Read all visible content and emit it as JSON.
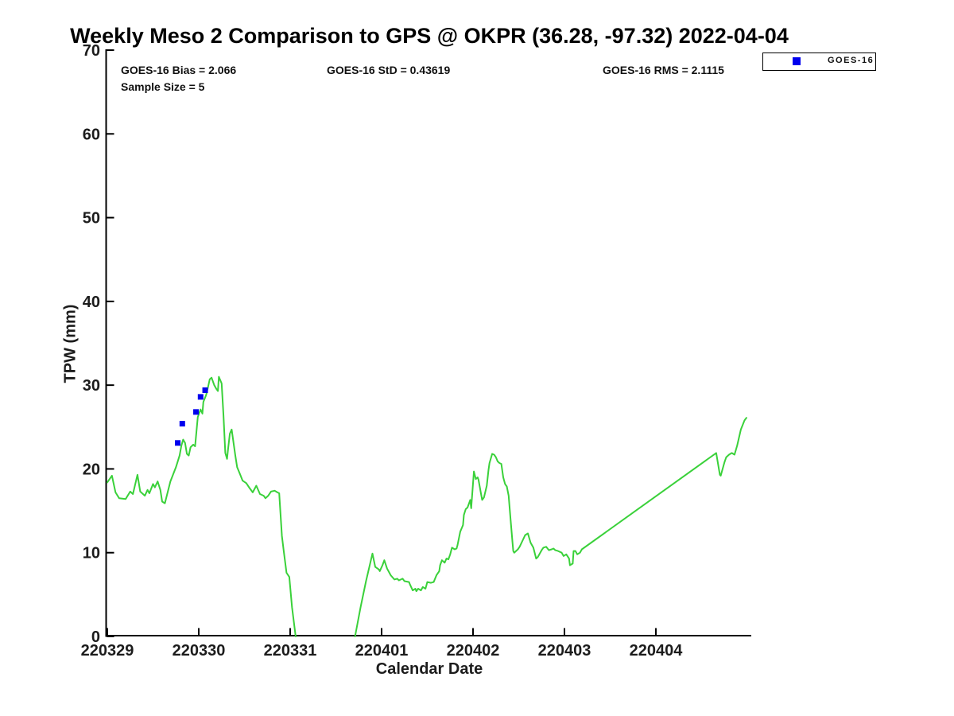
{
  "title": "Weekly Meso 2 Comparison to GPS @ OKPR (36.28, -97.32) 2022-04-04",
  "stats": {
    "bias": "GOES-16 Bias = 2.066",
    "std": "GOES-16 StD = 0.43619",
    "rms": "GOES-16 RMS = 2.1115",
    "sample": "Sample Size = 5"
  },
  "legend": {
    "label": "GOES-16",
    "marker_color": "#0000ee"
  },
  "axes": {
    "xlabel": "Calendar Date",
    "ylabel": "TPW (mm)"
  },
  "chart_data": {
    "type": "line",
    "title": "Weekly Meso 2 Comparison to GPS @ OKPR (36.28, -97.32) 2022-04-04",
    "xlabel": "Calendar Date",
    "ylabel": "TPW (mm)",
    "x_unit": "days since start tick 220329",
    "xlim": [
      0,
      7.04
    ],
    "ylim": [
      0,
      70
    ],
    "grid": false,
    "legend_position": "top-right-outside",
    "x_ticks": [
      {
        "d": 0,
        "label": "220329"
      },
      {
        "d": 1,
        "label": "220330"
      },
      {
        "d": 2,
        "label": "220331"
      },
      {
        "d": 3,
        "label": "220401"
      },
      {
        "d": 4,
        "label": "220402"
      },
      {
        "d": 5,
        "label": "220403"
      },
      {
        "d": 6,
        "label": "220404"
      }
    ],
    "y_ticks": [
      0,
      10,
      20,
      30,
      40,
      50,
      60,
      70
    ],
    "series": [
      {
        "name": "GPS",
        "type": "line",
        "color": "#3ad13a",
        "width": 2,
        "segments": [
          [
            [
              0.0,
              18.4
            ],
            [
              0.05,
              19.2
            ],
            [
              0.09,
              17.2
            ],
            [
              0.13,
              16.5
            ],
            [
              0.2,
              16.4
            ],
            [
              0.25,
              17.3
            ],
            [
              0.28,
              17.0
            ],
            [
              0.33,
              19.3
            ],
            [
              0.36,
              17.3
            ],
            [
              0.41,
              16.8
            ],
            [
              0.44,
              17.5
            ],
            [
              0.46,
              17.1
            ],
            [
              0.5,
              18.2
            ],
            [
              0.52,
              17.8
            ],
            [
              0.55,
              18.5
            ],
            [
              0.58,
              17.5
            ],
            [
              0.6,
              16.1
            ],
            [
              0.63,
              15.9
            ],
            [
              0.65,
              16.8
            ],
            [
              0.69,
              18.5
            ],
            [
              0.75,
              20.2
            ],
            [
              0.79,
              21.6
            ],
            [
              0.81,
              22.8
            ],
            [
              0.83,
              23.5
            ],
            [
              0.85,
              23.1
            ],
            [
              0.87,
              21.8
            ],
            [
              0.89,
              21.6
            ],
            [
              0.91,
              22.6
            ],
            [
              0.94,
              22.9
            ],
            [
              0.96,
              22.7
            ],
            [
              0.99,
              26.2
            ],
            [
              1.02,
              27.1
            ],
            [
              1.04,
              26.6
            ],
            [
              1.05,
              28.0
            ],
            [
              1.08,
              28.8
            ],
            [
              1.1,
              29.7
            ],
            [
              1.12,
              30.7
            ],
            [
              1.14,
              30.9
            ],
            [
              1.17,
              30.0
            ],
            [
              1.19,
              29.6
            ],
            [
              1.21,
              29.3
            ],
            [
              1.22,
              31.0
            ],
            [
              1.25,
              30.2
            ],
            [
              1.27,
              26.4
            ],
            [
              1.29,
              21.9
            ],
            [
              1.31,
              21.2
            ],
            [
              1.32,
              22.3
            ],
            [
              1.34,
              24.2
            ],
            [
              1.36,
              24.7
            ],
            [
              1.4,
              21.6
            ],
            [
              1.42,
              20.2
            ],
            [
              1.45,
              19.4
            ],
            [
              1.48,
              18.6
            ],
            [
              1.52,
              18.3
            ],
            [
              1.55,
              17.8
            ],
            [
              1.59,
              17.2
            ],
            [
              1.63,
              18.0
            ],
            [
              1.67,
              17.0
            ],
            [
              1.71,
              16.8
            ],
            [
              1.73,
              16.5
            ],
            [
              1.76,
              16.8
            ],
            [
              1.79,
              17.3
            ],
            [
              1.83,
              17.4
            ],
            [
              1.86,
              17.2
            ],
            [
              1.88,
              17.1
            ],
            [
              1.91,
              12.0
            ],
            [
              1.93,
              10.2
            ],
            [
              1.96,
              7.6
            ],
            [
              1.99,
              7.1
            ],
            [
              2.02,
              3.5
            ],
            [
              2.06,
              0.0
            ]
          ],
          [
            [
              2.71,
              0.0
            ],
            [
              2.77,
              3.5
            ],
            [
              2.83,
              6.6
            ],
            [
              2.9,
              9.9
            ],
            [
              2.93,
              8.3
            ],
            [
              2.97,
              8.0
            ],
            [
              2.98,
              7.8
            ],
            [
              3.01,
              8.5
            ],
            [
              3.03,
              9.1
            ],
            [
              3.06,
              8.1
            ],
            [
              3.1,
              7.3
            ],
            [
              3.14,
              6.8
            ],
            [
              3.17,
              6.9
            ],
            [
              3.19,
              6.7
            ],
            [
              3.23,
              6.9
            ],
            [
              3.25,
              6.6
            ],
            [
              3.3,
              6.5
            ],
            [
              3.31,
              6.2
            ],
            [
              3.34,
              5.5
            ],
            [
              3.37,
              5.7
            ],
            [
              3.38,
              5.4
            ],
            [
              3.4,
              5.7
            ],
            [
              3.43,
              5.5
            ],
            [
              3.45,
              5.9
            ],
            [
              3.48,
              5.7
            ],
            [
              3.5,
              6.5
            ],
            [
              3.54,
              6.4
            ],
            [
              3.57,
              6.5
            ],
            [
              3.6,
              7.3
            ],
            [
              3.63,
              7.8
            ],
            [
              3.64,
              8.5
            ],
            [
              3.66,
              9.1
            ],
            [
              3.69,
              8.8
            ],
            [
              3.71,
              9.3
            ],
            [
              3.73,
              9.2
            ],
            [
              3.75,
              9.8
            ],
            [
              3.77,
              10.6
            ],
            [
              3.8,
              10.4
            ],
            [
              3.82,
              10.5
            ],
            [
              3.83,
              10.9
            ],
            [
              3.86,
              12.5
            ],
            [
              3.89,
              13.3
            ],
            [
              3.9,
              14.5
            ],
            [
              3.92,
              15.2
            ],
            [
              3.94,
              15.4
            ],
            [
              3.97,
              16.3
            ],
            [
              3.98,
              15.3
            ],
            [
              4.01,
              19.7
            ],
            [
              4.03,
              18.8
            ],
            [
              4.05,
              19.0
            ],
            [
              4.06,
              18.7
            ],
            [
              4.09,
              16.9
            ],
            [
              4.1,
              16.3
            ],
            [
              4.12,
              16.6
            ],
            [
              4.15,
              18.0
            ],
            [
              4.17,
              19.9
            ],
            [
              4.18,
              20.7
            ],
            [
              4.21,
              21.8
            ],
            [
              4.23,
              21.7
            ],
            [
              4.25,
              21.4
            ],
            [
              4.27,
              20.9
            ],
            [
              4.29,
              20.7
            ],
            [
              4.31,
              20.6
            ],
            [
              4.33,
              19.0
            ],
            [
              4.35,
              18.2
            ],
            [
              4.37,
              17.9
            ],
            [
              4.39,
              16.8
            ],
            [
              4.41,
              14.0
            ],
            [
              4.43,
              11.4
            ],
            [
              4.44,
              10.2
            ],
            [
              4.45,
              10.0
            ],
            [
              4.49,
              10.4
            ],
            [
              4.51,
              10.7
            ],
            [
              4.54,
              11.4
            ],
            [
              4.57,
              12.1
            ],
            [
              4.6,
              12.3
            ],
            [
              4.63,
              11.2
            ],
            [
              4.66,
              10.6
            ],
            [
              4.69,
              9.3
            ],
            [
              4.71,
              9.5
            ],
            [
              4.75,
              10.3
            ],
            [
              4.77,
              10.6
            ],
            [
              4.8,
              10.7
            ],
            [
              4.83,
              10.3
            ],
            [
              4.86,
              10.4
            ],
            [
              4.88,
              10.5
            ],
            [
              4.9,
              10.3
            ],
            [
              4.93,
              10.2
            ],
            [
              4.97,
              10.0
            ],
            [
              4.99,
              9.6
            ],
            [
              5.02,
              9.8
            ],
            [
              5.05,
              9.3
            ],
            [
              5.06,
              8.5
            ],
            [
              5.09,
              8.7
            ],
            [
              5.1,
              10.2
            ],
            [
              5.12,
              10.2
            ],
            [
              5.14,
              9.8
            ],
            [
              5.17,
              10.0
            ],
            [
              5.19,
              10.4
            ],
            [
              6.66,
              21.9
            ],
            [
              6.7,
              19.3
            ],
            [
              6.71,
              19.2
            ],
            [
              6.75,
              20.8
            ],
            [
              6.76,
              21.1
            ],
            [
              6.77,
              21.4
            ],
            [
              6.8,
              21.7
            ],
            [
              6.83,
              21.9
            ],
            [
              6.86,
              21.7
            ],
            [
              6.89,
              22.8
            ],
            [
              6.93,
              24.7
            ],
            [
              6.97,
              25.8
            ],
            [
              6.99,
              26.1
            ]
          ]
        ]
      },
      {
        "name": "GOES-16",
        "type": "scatter",
        "marker": "square",
        "marker_size": 7,
        "color": "#0000ee",
        "points": [
          [
            0.77,
            23.1
          ],
          [
            0.82,
            25.4
          ],
          [
            0.97,
            26.8
          ],
          [
            1.02,
            28.6
          ],
          [
            1.07,
            29.4
          ]
        ]
      }
    ]
  }
}
